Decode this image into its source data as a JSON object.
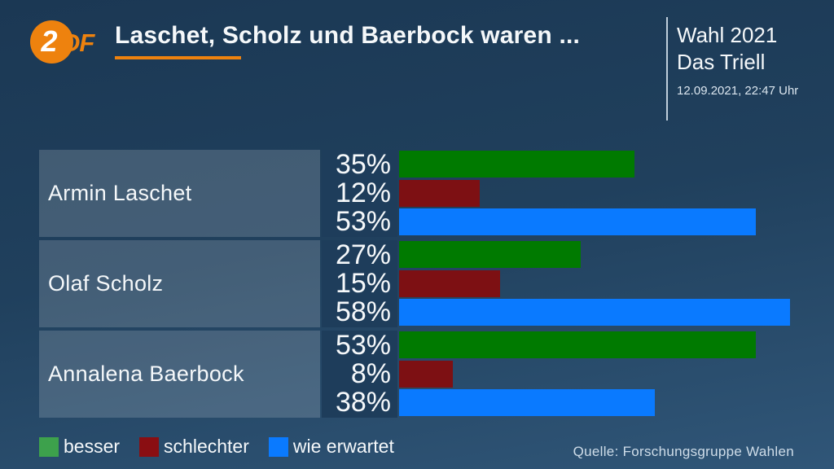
{
  "header": {
    "logo": {
      "circle_text": "2",
      "suffix": "DF"
    },
    "title": "Laschet, Scholz und Baerbock waren ...",
    "program_line1": "Wahl 2021",
    "program_line2": "Das Triell",
    "timestamp": "12.09.2021, 22:47 Uhr"
  },
  "chart_data": {
    "type": "bar",
    "orientation": "horizontal",
    "title": "Laschet, Scholz und Baerbock waren ...",
    "categories": [
      "Armin Laschet",
      "Olaf Scholz",
      "Annalena Baerbock"
    ],
    "series": [
      {
        "name": "besser",
        "color": "#007a00",
        "values": [
          35,
          27,
          53
        ]
      },
      {
        "name": "schlechter",
        "color": "#7d1013",
        "values": [
          12,
          15,
          8
        ]
      },
      {
        "name": "wie erwartet",
        "color": "#0a7aff",
        "values": [
          53,
          58,
          38
        ]
      }
    ],
    "value_suffix": "%",
    "xlim": [
      0,
      64
    ],
    "grid": false,
    "legend_position": "bottom-left"
  },
  "legend": [
    {
      "label": "besser",
      "color": "#3da14c"
    },
    {
      "label": "schlechter",
      "color": "#8a0e12"
    },
    {
      "label": "wie erwartet",
      "color": "#0a7aff"
    }
  ],
  "source": "Quelle: Forschungsgruppe Wahlen",
  "colors": {
    "accent_orange": "#ee820e",
    "background_top": "#1b3854",
    "background_bottom": "#305678",
    "name_cell": "rgba(255,255,255,0.16)",
    "percent_cell": "#1e3d5b",
    "text": "#f5f8fa"
  }
}
